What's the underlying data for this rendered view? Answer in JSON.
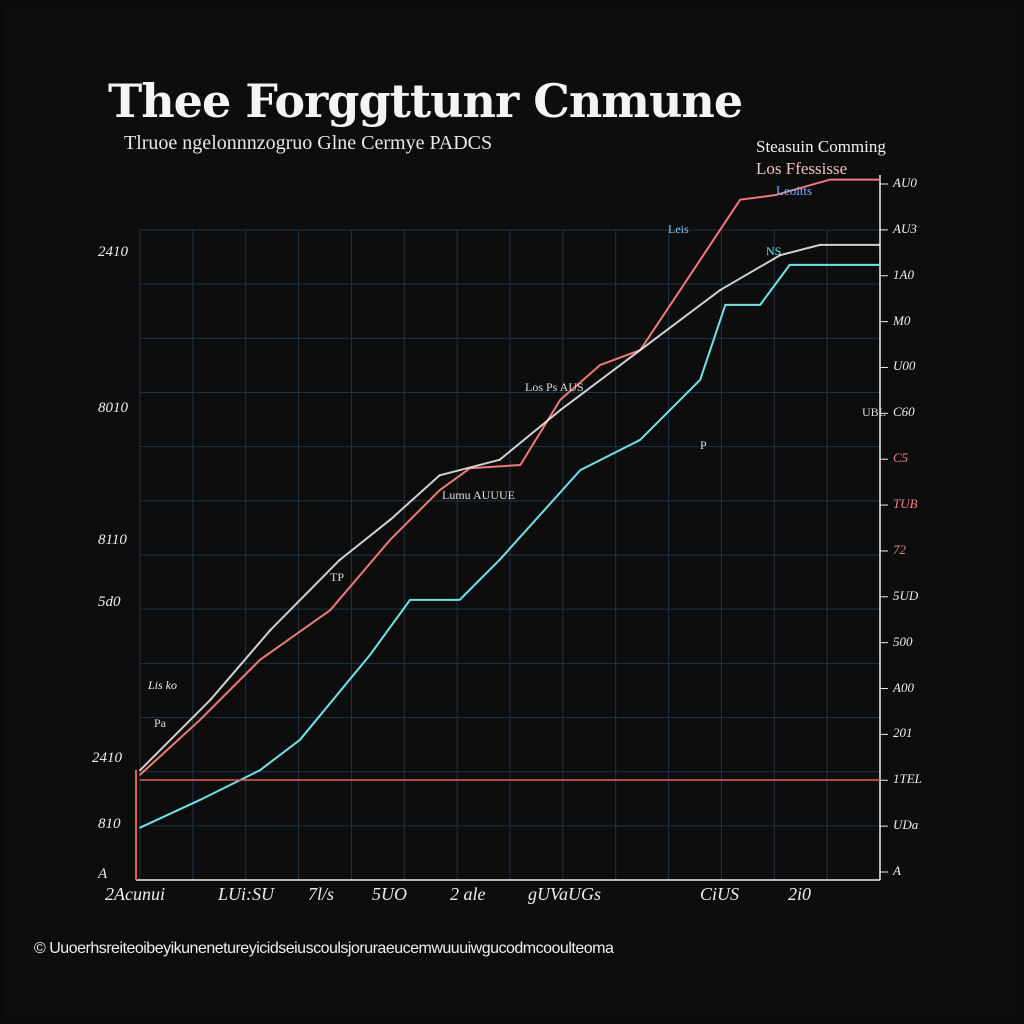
{
  "chart_data": {
    "type": "line",
    "title": "Thee Forggttunr Cnmune",
    "subtitle": "Tlruoe ngelonnnzogruo Glne Cermye PADCS",
    "legend": {
      "position": "top-right",
      "entries": [
        "Steasuin Comming",
        "Los Ffessisse",
        "Leoitts"
      ]
    },
    "xlim": [
      0,
      100
    ],
    "ylim": [
      0,
      110
    ],
    "grid": true,
    "y_ticks_left": [
      "2410",
      "8010",
      "8110",
      "5d0",
      "Lis ko",
      "2410",
      "810",
      "A"
    ],
    "y_ticks_right": [
      "AU0",
      "AU3",
      "1A0",
      "M0",
      "U00",
      "C60",
      "C5",
      "TUB",
      "72",
      "5UD",
      "500",
      "A00",
      "201",
      "1TEL",
      "UDa",
      "A"
    ],
    "x_ticks": [
      "2Acunui",
      "LUi:SU",
      "7l/s",
      "5UO",
      "2 ale",
      "gUVaUGs",
      "CiUS",
      "2i0"
    ],
    "annotations": [
      "Leis",
      "Los Ps AUS",
      "Lumu AUUUE",
      "TP",
      "Pa",
      "NS",
      "UBL",
      "P"
    ],
    "series": [
      {
        "name": "Steasuin Comming",
        "color": "#f07a7a",
        "x": [
          0,
          8.1,
          16.2,
          25.7,
          33.8,
          40.5,
          44.6,
          51.4,
          56.8,
          62.2,
          67.6,
          73,
          81.1,
          85.8,
          93.2,
          100
        ],
        "y": [
          16.3,
          24.8,
          34.1,
          41.8,
          52.7,
          60.4,
          63.8,
          64.3,
          74.4,
          79.8,
          82.1,
          91.4,
          105.4,
          106.1,
          108.5,
          108.5
        ]
      },
      {
        "name": "Los Ffessisse",
        "color": "#6fe3e6",
        "x": [
          0,
          8.1,
          16.2,
          21.6,
          31.1,
          36.5,
          43.2,
          48.6,
          59.5,
          67.6,
          75.7,
          79.1,
          83.8,
          87.8,
          100
        ],
        "y": [
          8.1,
          12.4,
          17,
          21.7,
          34.9,
          43.4,
          43.4,
          49.6,
          63.5,
          68.2,
          77.5,
          89.1,
          89.1,
          95.3,
          95.3
        ]
      },
      {
        "name": "Leoitts",
        "color": "#f2f2f2",
        "x": [
          0,
          9.5,
          17.6,
          27,
          33.8,
          40.5,
          48.6,
          56.8,
          67.6,
          78.4,
          86.5,
          91.9,
          100
        ],
        "y": [
          17,
          27.9,
          38.7,
          49.6,
          55.8,
          62.7,
          65.1,
          72.8,
          82.1,
          91.4,
          96.8,
          98.4,
          98.4
        ]
      },
      {
        "name": "baseline",
        "color": "#e06060",
        "x": [
          0,
          100
        ],
        "y": [
          15.5,
          15.5
        ]
      }
    ],
    "footer": "© Uuoerhsreiteoibeyikunenetureyicidseiuscoulsjoruraeucemwuuuiwgucodmcooulteoma"
  }
}
